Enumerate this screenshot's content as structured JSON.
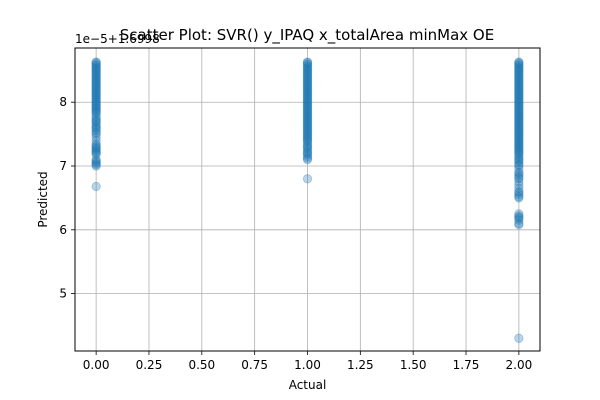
{
  "chart_data": {
    "type": "scatter",
    "title": "Scatter Plot: SVR() y_IPAQ x_totalArea minMax OE",
    "xlabel": "Actual",
    "ylabel": "Predicted",
    "y_offset_text": "1e−5+1.6998",
    "xlim": [
      -0.1,
      2.1
    ],
    "ylim": [
      4.1,
      8.85
    ],
    "x_ticks": [
      0.0,
      0.25,
      0.5,
      0.75,
      1.0,
      1.25,
      1.5,
      1.75,
      2.0
    ],
    "x_tick_labels": [
      "0.00",
      "0.25",
      "0.50",
      "0.75",
      "1.00",
      "1.25",
      "1.50",
      "1.75",
      "2.00"
    ],
    "y_ticks": [
      5,
      6,
      7,
      8
    ],
    "y_tick_labels": [
      "5",
      "6",
      "7",
      "8"
    ],
    "grid": true,
    "marker_color": "#1f77b4",
    "marker_alpha": 0.3,
    "series": [
      {
        "x": [
          0,
          0,
          0,
          0,
          0,
          0,
          0,
          0,
          0,
          0,
          0,
          0,
          0,
          0,
          0,
          0,
          0,
          0,
          0,
          0,
          0,
          0,
          0,
          0,
          0,
          0,
          0,
          0,
          0,
          0,
          0,
          0,
          0,
          0,
          0,
          0,
          0,
          0,
          0,
          0,
          0,
          0,
          0,
          0,
          0,
          0,
          0,
          0,
          0,
          0,
          0,
          0,
          0,
          0,
          0,
          0,
          0,
          0,
          0,
          0,
          0,
          0,
          0,
          0,
          0,
          0,
          0,
          0,
          0,
          0,
          0,
          0
        ],
        "y": [
          8.62,
          8.6,
          8.58,
          8.56,
          8.54,
          8.52,
          8.5,
          8.48,
          8.46,
          8.44,
          8.42,
          8.4,
          8.38,
          8.36,
          8.34,
          8.32,
          8.3,
          8.28,
          8.26,
          8.24,
          8.22,
          8.2,
          8.18,
          8.16,
          8.14,
          8.12,
          8.1,
          8.08,
          8.06,
          8.04,
          8.02,
          8.0,
          7.98,
          7.96,
          7.94,
          7.92,
          7.9,
          7.88,
          7.86,
          7.84,
          7.82,
          7.78,
          7.75,
          7.72,
          7.7,
          7.68,
          7.65,
          7.62,
          7.6,
          7.58,
          7.55,
          7.52,
          7.5,
          7.45,
          7.4,
          7.35,
          7.32,
          7.3,
          7.28,
          7.26,
          7.24,
          7.22,
          7.2,
          7.18,
          7.1,
          7.08,
          7.06,
          7.04,
          7.02,
          7.0,
          6.68,
          8.63
        ]
      },
      {
        "x": [
          1,
          1,
          1,
          1,
          1,
          1,
          1,
          1,
          1,
          1,
          1,
          1,
          1,
          1,
          1,
          1,
          1,
          1,
          1,
          1,
          1,
          1,
          1,
          1,
          1,
          1,
          1,
          1,
          1,
          1,
          1,
          1,
          1,
          1,
          1,
          1,
          1,
          1,
          1,
          1,
          1,
          1,
          1,
          1,
          1,
          1,
          1,
          1,
          1,
          1,
          1,
          1,
          1,
          1,
          1,
          1,
          1,
          1,
          1,
          1,
          1,
          1,
          1,
          1,
          1,
          1,
          1,
          1,
          1,
          1,
          1,
          1,
          1,
          1,
          1,
          1
        ],
        "y": [
          8.63,
          8.62,
          8.6,
          8.58,
          8.56,
          8.54,
          8.52,
          8.5,
          8.48,
          8.46,
          8.44,
          8.42,
          8.4,
          8.38,
          8.36,
          8.34,
          8.32,
          8.3,
          8.28,
          8.26,
          8.24,
          8.22,
          8.2,
          8.18,
          8.16,
          8.14,
          8.12,
          8.1,
          8.08,
          8.06,
          8.04,
          8.02,
          8.0,
          7.98,
          7.96,
          7.94,
          7.92,
          7.9,
          7.88,
          7.86,
          7.84,
          7.82,
          7.8,
          7.78,
          7.76,
          7.74,
          7.72,
          7.7,
          7.68,
          7.66,
          7.64,
          7.62,
          7.6,
          7.58,
          7.56,
          7.54,
          7.52,
          7.5,
          7.48,
          7.46,
          7.44,
          7.42,
          7.4,
          7.35,
          7.32,
          7.3,
          7.28,
          7.25,
          7.22,
          7.2,
          7.18,
          7.15,
          7.12,
          7.1,
          6.8,
          7.38
        ]
      },
      {
        "x": [
          2,
          2,
          2,
          2,
          2,
          2,
          2,
          2,
          2,
          2,
          2,
          2,
          2,
          2,
          2,
          2,
          2,
          2,
          2,
          2,
          2,
          2,
          2,
          2,
          2,
          2,
          2,
          2,
          2,
          2,
          2,
          2,
          2,
          2,
          2,
          2,
          2,
          2,
          2,
          2,
          2,
          2,
          2,
          2,
          2,
          2,
          2,
          2,
          2,
          2,
          2,
          2,
          2,
          2,
          2,
          2,
          2,
          2,
          2,
          2,
          2,
          2,
          2,
          2,
          2,
          2,
          2,
          2,
          2,
          2,
          2,
          2,
          2,
          2,
          2,
          2,
          2,
          2,
          2,
          2,
          2,
          2,
          2,
          2,
          2,
          2,
          2,
          2,
          2,
          2,
          2,
          2,
          2,
          2,
          2,
          2,
          2,
          2,
          2,
          2,
          2,
          2,
          2
        ],
        "y": [
          8.63,
          8.62,
          8.6,
          8.58,
          8.56,
          8.54,
          8.52,
          8.5,
          8.48,
          8.46,
          8.44,
          8.42,
          8.4,
          8.38,
          8.36,
          8.34,
          8.32,
          8.3,
          8.28,
          8.26,
          8.24,
          8.22,
          8.2,
          8.18,
          8.16,
          8.14,
          8.12,
          8.1,
          8.08,
          8.06,
          8.04,
          8.02,
          8.0,
          7.98,
          7.96,
          7.94,
          7.92,
          7.9,
          7.88,
          7.86,
          7.84,
          7.82,
          7.8,
          7.78,
          7.76,
          7.74,
          7.72,
          7.7,
          7.68,
          7.66,
          7.64,
          7.62,
          7.6,
          7.58,
          7.56,
          7.54,
          7.52,
          7.5,
          7.48,
          7.46,
          7.44,
          7.42,
          7.4,
          7.38,
          7.36,
          7.34,
          7.32,
          7.3,
          7.28,
          7.26,
          7.24,
          7.22,
          7.2,
          7.18,
          7.15,
          7.12,
          7.1,
          7.08,
          7.05,
          7.02,
          7.0,
          6.95,
          6.9,
          6.88,
          6.85,
          6.82,
          6.8,
          6.75,
          6.7,
          6.65,
          6.6,
          6.58,
          6.55,
          6.52,
          6.5,
          6.25,
          6.22,
          6.2,
          6.18,
          6.15,
          6.1,
          6.08,
          4.3
        ]
      }
    ]
  }
}
